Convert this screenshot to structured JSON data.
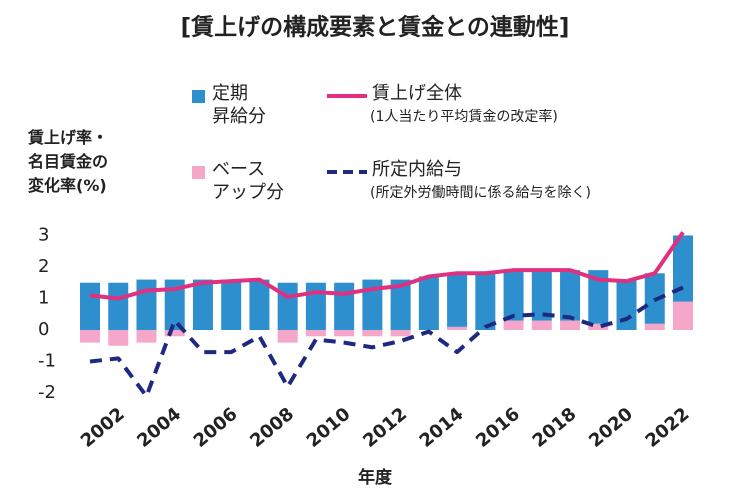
{
  "chart_data": {
    "type": "bar",
    "title": "[賃上げの構成要素と賃金との連動性]",
    "y_axis_label": "賃上げ率・\n名目賃金の\n変化率(%)",
    "x_axis_label": "年度",
    "categories": [
      null,
      "2002",
      null,
      "2004",
      null,
      "2006",
      null,
      "2008",
      null,
      "2010",
      null,
      "2012",
      null,
      "2014",
      null,
      "2016",
      null,
      "2018",
      null,
      "2020",
      null,
      "2022"
    ],
    "series": [
      {
        "name": "定期\n昇給分",
        "type": "bar",
        "color": "#2e8fcf",
        "values": [
          1.5,
          1.5,
          1.6,
          1.6,
          1.6,
          1.6,
          1.6,
          1.5,
          1.5,
          1.5,
          1.6,
          1.6,
          1.7,
          1.7,
          1.8,
          1.6,
          1.6,
          1.6,
          1.7,
          1.6,
          1.6,
          2.1
        ]
      },
      {
        "name": "ベース\nアップ分",
        "type": "bar",
        "color": "#f4a7c9",
        "values": [
          -0.4,
          -0.5,
          -0.4,
          -0.2,
          0,
          0,
          0,
          -0.4,
          -0.2,
          -0.2,
          -0.2,
          -0.2,
          0,
          0.1,
          0,
          0.3,
          0.3,
          0.3,
          0.2,
          0,
          0.2,
          0.9
        ]
      },
      {
        "name": "賃上げ全体",
        "note": "(1人当たり平均賃金の改定率)",
        "type": "line",
        "color": "#e0307f",
        "values": [
          1.1,
          1.0,
          1.25,
          1.3,
          1.5,
          1.55,
          1.6,
          1.05,
          1.2,
          1.15,
          1.3,
          1.4,
          1.7,
          1.8,
          1.8,
          1.9,
          1.9,
          1.9,
          1.6,
          1.55,
          1.8,
          3.1
        ]
      },
      {
        "name": "所定内給与",
        "note": "(所定外労働時間に係る給与を除く)",
        "type": "dashed-line",
        "color": "#1d2a80",
        "values": [
          -1.0,
          -0.9,
          -2.1,
          0.3,
          -0.7,
          -0.7,
          -0.2,
          -1.8,
          -0.3,
          -0.4,
          -0.55,
          -0.35,
          -0.05,
          -0.7,
          0.1,
          0.45,
          0.5,
          0.4,
          0.1,
          0.35,
          0.95,
          1.35
        ]
      }
    ],
    "ylim": [
      -2.3,
      3.3
    ],
    "yticks": [
      -2,
      -1,
      0,
      1,
      2,
      3
    ],
    "grid": false
  }
}
